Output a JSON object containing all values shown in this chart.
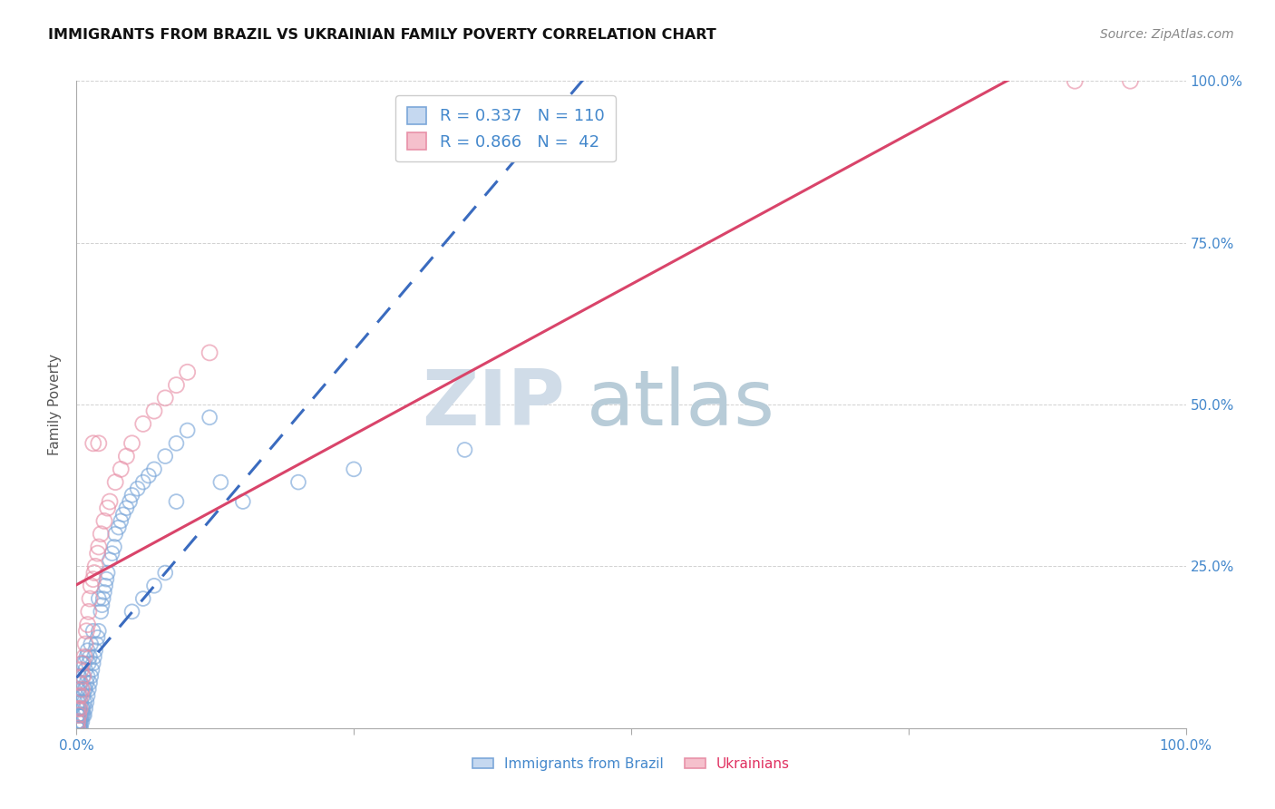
{
  "title": "IMMIGRANTS FROM BRAZIL VS UKRAINIAN FAMILY POVERTY CORRELATION CHART",
  "source": "Source: ZipAtlas.com",
  "ylabel": "Family Poverty",
  "xlim": [
    0,
    1
  ],
  "ylim": [
    0,
    1
  ],
  "brazil_color": "#7ba7d9",
  "ukraine_color": "#e891a8",
  "brazil_R": 0.337,
  "brazil_N": 110,
  "ukraine_R": 0.866,
  "ukraine_N": 42,
  "brazil_trend_color": "#3a6bbf",
  "ukraine_trend_color": "#d9446a",
  "brazil_trend_dash": true,
  "watermark_zip": "ZIP",
  "watermark_atlas": "atlas",
  "watermark_color_zip": "#d0dce8",
  "watermark_color_atlas": "#b8ccd8",
  "brazil_x": [
    0.001,
    0.001,
    0.001,
    0.001,
    0.001,
    0.001,
    0.001,
    0.001,
    0.001,
    0.001,
    0.001,
    0.001,
    0.001,
    0.001,
    0.001,
    0.002,
    0.002,
    0.002,
    0.002,
    0.002,
    0.002,
    0.002,
    0.002,
    0.002,
    0.002,
    0.003,
    0.003,
    0.003,
    0.003,
    0.003,
    0.003,
    0.003,
    0.003,
    0.004,
    0.004,
    0.004,
    0.004,
    0.004,
    0.005,
    0.005,
    0.005,
    0.005,
    0.005,
    0.006,
    0.006,
    0.006,
    0.006,
    0.007,
    0.007,
    0.007,
    0.007,
    0.008,
    0.008,
    0.008,
    0.009,
    0.009,
    0.009,
    0.01,
    0.01,
    0.01,
    0.011,
    0.011,
    0.012,
    0.012,
    0.013,
    0.013,
    0.014,
    0.015,
    0.015,
    0.016,
    0.017,
    0.018,
    0.019,
    0.02,
    0.02,
    0.022,
    0.023,
    0.024,
    0.025,
    0.026,
    0.027,
    0.028,
    0.03,
    0.032,
    0.034,
    0.035,
    0.038,
    0.04,
    0.042,
    0.045,
    0.048,
    0.05,
    0.055,
    0.06,
    0.065,
    0.07,
    0.08,
    0.09,
    0.1,
    0.12,
    0.05,
    0.06,
    0.07,
    0.08,
    0.09,
    0.13,
    0.15,
    0.2,
    0.25,
    0.35
  ],
  "brazil_y": [
    0.0,
    0.0,
    0.0,
    0.0,
    0.0,
    0.0,
    0.0,
    0.0,
    0.01,
    0.01,
    0.02,
    0.02,
    0.03,
    0.04,
    0.06,
    0.0,
    0.0,
    0.0,
    0.01,
    0.01,
    0.02,
    0.03,
    0.04,
    0.06,
    0.08,
    0.0,
    0.0,
    0.01,
    0.01,
    0.02,
    0.03,
    0.05,
    0.07,
    0.0,
    0.01,
    0.02,
    0.04,
    0.07,
    0.01,
    0.02,
    0.03,
    0.06,
    0.1,
    0.02,
    0.03,
    0.05,
    0.08,
    0.02,
    0.04,
    0.06,
    0.1,
    0.03,
    0.06,
    0.09,
    0.04,
    0.07,
    0.11,
    0.05,
    0.08,
    0.12,
    0.06,
    0.1,
    0.07,
    0.11,
    0.08,
    0.13,
    0.09,
    0.1,
    0.15,
    0.11,
    0.12,
    0.13,
    0.14,
    0.15,
    0.2,
    0.18,
    0.19,
    0.2,
    0.21,
    0.22,
    0.23,
    0.24,
    0.26,
    0.27,
    0.28,
    0.3,
    0.31,
    0.32,
    0.33,
    0.34,
    0.35,
    0.36,
    0.37,
    0.38,
    0.39,
    0.4,
    0.42,
    0.44,
    0.46,
    0.48,
    0.18,
    0.2,
    0.22,
    0.24,
    0.35,
    0.38,
    0.35,
    0.38,
    0.4,
    0.43
  ],
  "ukraine_x": [
    0.001,
    0.001,
    0.001,
    0.002,
    0.002,
    0.003,
    0.003,
    0.004,
    0.004,
    0.005,
    0.005,
    0.006,
    0.007,
    0.008,
    0.009,
    0.01,
    0.011,
    0.012,
    0.013,
    0.015,
    0.016,
    0.017,
    0.019,
    0.02,
    0.022,
    0.025,
    0.028,
    0.03,
    0.035,
    0.04,
    0.045,
    0.05,
    0.06,
    0.07,
    0.08,
    0.09,
    0.1,
    0.12,
    0.9,
    0.95,
    0.015,
    0.02
  ],
  "ukraine_y": [
    0.0,
    0.01,
    0.03,
    0.02,
    0.05,
    0.03,
    0.07,
    0.05,
    0.09,
    0.06,
    0.1,
    0.08,
    0.11,
    0.13,
    0.15,
    0.16,
    0.18,
    0.2,
    0.22,
    0.23,
    0.24,
    0.25,
    0.27,
    0.28,
    0.3,
    0.32,
    0.34,
    0.35,
    0.38,
    0.4,
    0.42,
    0.44,
    0.47,
    0.49,
    0.51,
    0.53,
    0.55,
    0.58,
    1.0,
    1.0,
    0.44,
    0.44
  ]
}
